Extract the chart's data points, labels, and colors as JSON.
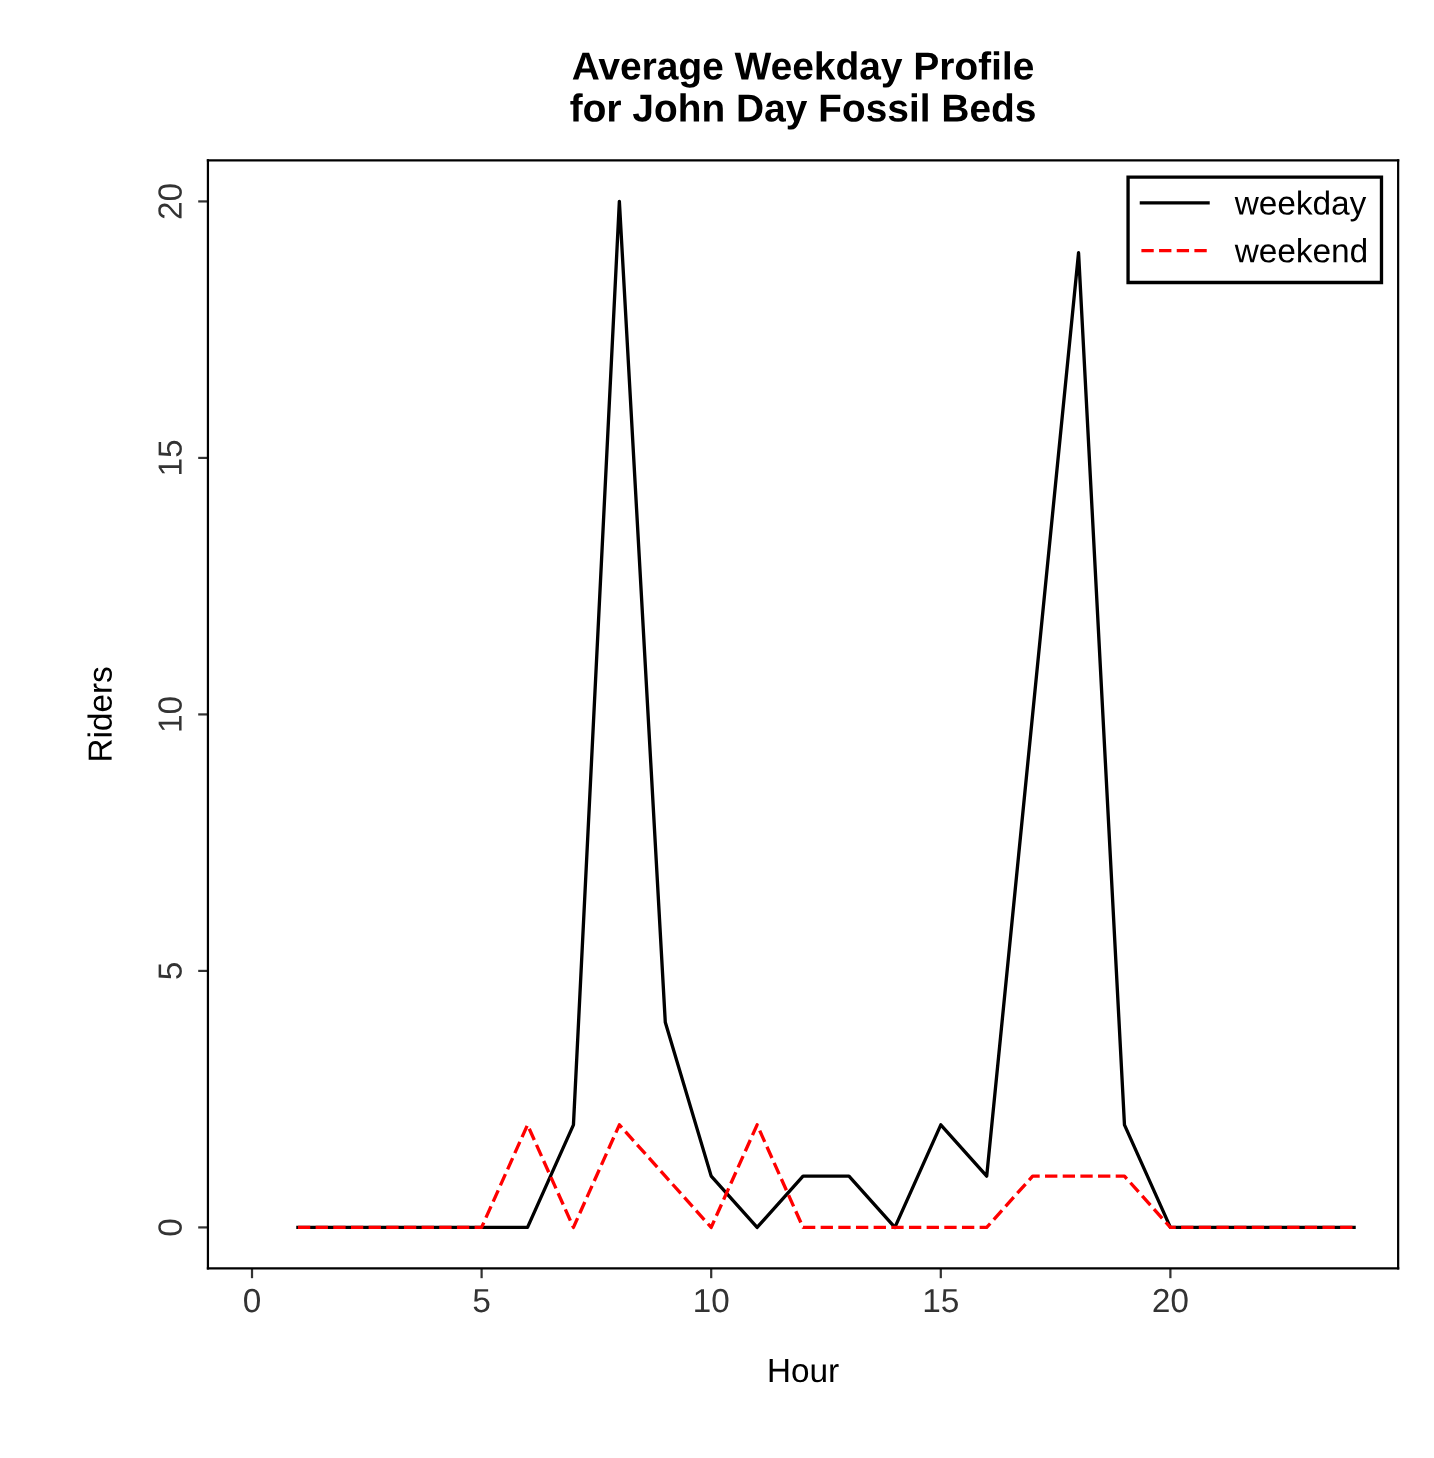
{
  "chart_data": {
    "type": "line",
    "title": "Average Weekday Profile\nfor John Day Fossil Beds",
    "xlabel": "Hour",
    "ylabel": "Riders",
    "x": [
      1,
      2,
      3,
      4,
      5,
      6,
      7,
      8,
      9,
      10,
      11,
      12,
      13,
      14,
      15,
      16,
      17,
      18,
      19,
      20,
      21,
      22,
      23,
      24
    ],
    "series": [
      {
        "name": "weekday",
        "color": "#000000",
        "line_style": "solid",
        "values": [
          0,
          0,
          0,
          0,
          0,
          0,
          2,
          20,
          4,
          1,
          0,
          1,
          1,
          0,
          2,
          1,
          10,
          19,
          2,
          0,
          0,
          0,
          0,
          0
        ]
      },
      {
        "name": "weekend",
        "color": "#ff0000",
        "line_style": "dashed",
        "values": [
          0,
          0,
          0,
          0,
          0,
          2,
          0,
          2,
          1,
          0,
          2,
          0,
          0,
          0,
          0,
          0,
          1,
          1,
          1,
          0,
          0,
          0,
          0,
          0
        ]
      }
    ],
    "xlim": [
      -0.96,
      24.96
    ],
    "ylim": [
      -0.8,
      20.8
    ],
    "xticks": [
      0,
      5,
      10,
      15,
      20
    ],
    "yticks": [
      0,
      5,
      10,
      15,
      20
    ],
    "grid": false,
    "legend": "top right",
    "marker": "none"
  }
}
